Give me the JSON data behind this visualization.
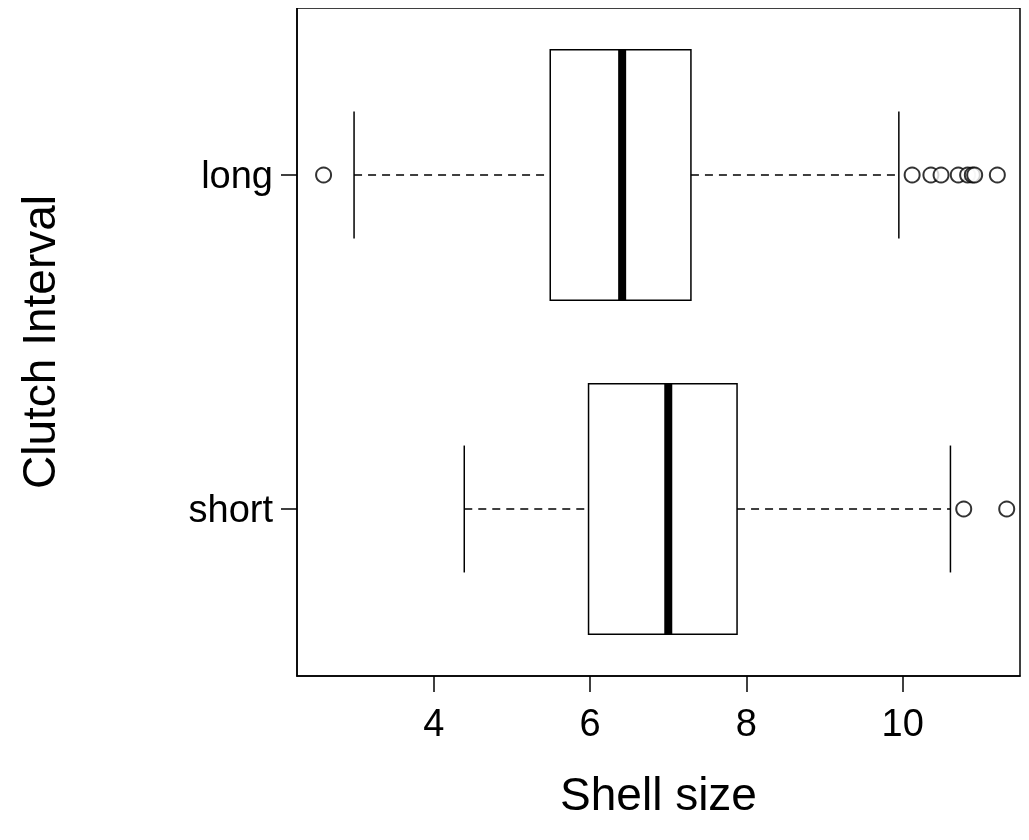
{
  "chart_data": {
    "type": "box",
    "orientation": "horizontal",
    "xlabel": "Shell size",
    "ylabel": "Clutch Interval",
    "categories": [
      "long",
      "short"
    ],
    "boxes": [
      {
        "low": 2.98,
        "q1": 5.49,
        "median": 6.41,
        "q3": 7.29,
        "high": 9.95,
        "outliers": [
          2.59,
          10.12,
          10.36,
          10.49,
          10.71,
          10.83,
          10.89,
          10.92,
          11.21
        ]
      },
      {
        "low": 4.39,
        "q1": 5.98,
        "median": 7.0,
        "q3": 7.88,
        "high": 10.61,
        "outliers": [
          10.78,
          11.33
        ]
      }
    ],
    "xlim": [
      2.25,
      11.5
    ],
    "xticks": [
      4,
      6,
      8,
      10
    ],
    "grid": false,
    "line_style": "dashed",
    "marker": "circle"
  }
}
